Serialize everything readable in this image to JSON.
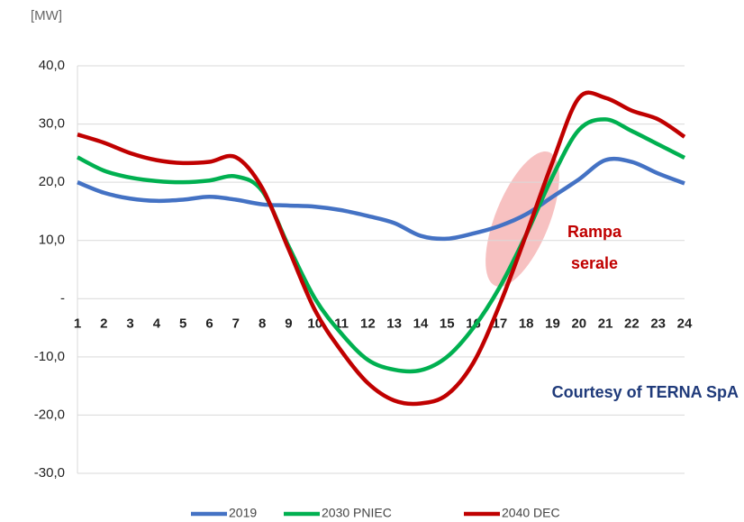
{
  "chart_data": {
    "type": "line",
    "y_label": "[MW]",
    "categories": [
      "1",
      "2",
      "3",
      "4",
      "5",
      "6",
      "7",
      "8",
      "9",
      "10",
      "11",
      "12",
      "13",
      "14",
      "15",
      "16",
      "17",
      "18",
      "19",
      "20",
      "21",
      "22",
      "23",
      "24"
    ],
    "series": [
      {
        "name": "2019",
        "color": "#4472c4",
        "values": [
          20,
          18.2,
          17.2,
          16.8,
          17,
          17.5,
          17,
          16.2,
          16,
          15.8,
          15.2,
          14.2,
          13,
          10.8,
          10.3,
          11.2,
          12.5,
          14.5,
          17.5,
          20.5,
          23.8,
          23.5,
          21.5,
          19.8
        ]
      },
      {
        "name": "2030 PNIEC",
        "color": "#00b050",
        "values": [
          24.3,
          22,
          20.8,
          20.2,
          20,
          20.3,
          21,
          18.5,
          9,
          0,
          -6,
          -10.5,
          -12.2,
          -12.3,
          -10,
          -5,
          2,
          11,
          21,
          29,
          30.8,
          28.8,
          26.5,
          24.2
        ]
      },
      {
        "name": "2040 DEC",
        "color": "#c00000",
        "values": [
          28.2,
          26.8,
          25,
          23.8,
          23.3,
          23.5,
          24.3,
          19,
          8.5,
          -2,
          -9,
          -14.5,
          -17.5,
          -18,
          -16.5,
          -11,
          -1,
          11,
          23.5,
          34.5,
          34.5,
          32.3,
          30.8,
          27.8
        ]
      }
    ],
    "ylim": [
      -30,
      40
    ],
    "yticks": [
      {
        "value": 40,
        "label": "40,0"
      },
      {
        "value": 30,
        "label": "30,0"
      },
      {
        "value": 20,
        "label": "20,0"
      },
      {
        "value": 10,
        "label": "10,0"
      },
      {
        "value": 0,
        "label": "-"
      },
      {
        "value": -10,
        "label": "-10,0"
      },
      {
        "value": -20,
        "label": "-20,0"
      },
      {
        "value": -30,
        "label": "-30,0"
      }
    ],
    "grid": true,
    "annotations": [
      "Rampa",
      "serale"
    ],
    "credit": "Courtesy of TERNA SpA"
  }
}
